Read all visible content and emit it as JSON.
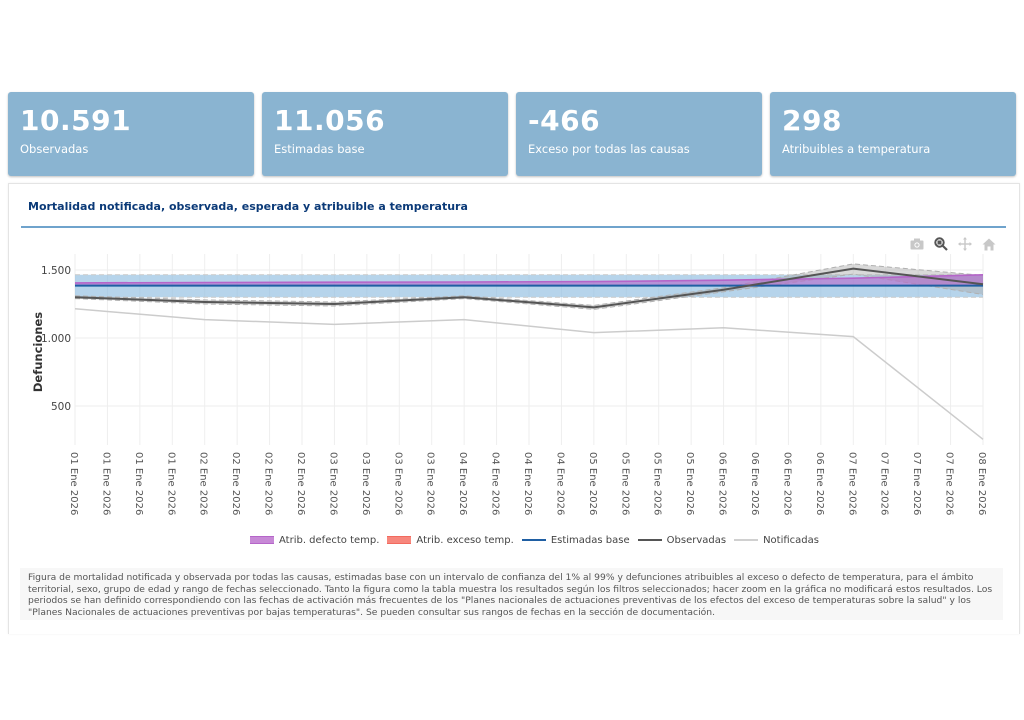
{
  "kpis": [
    {
      "value": "10.591",
      "label": "Observadas"
    },
    {
      "value": "11.056",
      "label": "Estimadas base"
    },
    {
      "value": "-466",
      "label": "Exceso por todas las causas"
    },
    {
      "value": "298",
      "label": "Atribuibles a temperatura"
    }
  ],
  "panel": {
    "title": "Mortalidad notificada, observada, esperada y atribuible a temperatura",
    "modebar": [
      "camera-icon",
      "zoom-icon",
      "pan-icon",
      "home-icon"
    ]
  },
  "colors": {
    "kpi_bg": "#8ab4d1",
    "title": "#0b3a78",
    "estimadas": "#1f5fa3",
    "ci_band": "#8fbde0",
    "defecto": "#b565c9",
    "exceso": "#f26a5e",
    "observadas": "#555555",
    "notificadas": "#cccccc"
  },
  "legend": [
    {
      "key": "defecto",
      "label": "Atrib. defecto temp.",
      "type": "area"
    },
    {
      "key": "exceso",
      "label": "Atrib. exceso temp.",
      "type": "area"
    },
    {
      "key": "estimadas",
      "label": "Estimadas base",
      "type": "line"
    },
    {
      "key": "observadas",
      "label": "Observadas",
      "type": "line"
    },
    {
      "key": "notificadas",
      "label": "Notificadas",
      "type": "line"
    }
  ],
  "caption": "Figura de mortalidad notificada y observada por todas las causas, estimadas base con un intervalo de confianza del 1% al 99% y defunciones atribuibles al exceso o defecto de temperatura, para el ámbito territorial, sexo, grupo de edad y rango de fechas seleccionado. Tanto la figura como la tabla muestra los resultados según los filtros seleccionados; hacer zoom en la gráfica no modificará estos resultados. Los periodos se han definido correspondiendo con las fechas de activación más frecuentes de los \"Planes nacionales de actuaciones preventivas de los efectos del exceso de temperaturas sobre la salud\" y los \"Planes Nacionales de actuaciones preventivas por bajas temperaturas\". Se pueden consultar sus rangos de fechas en la sección de documentación.",
  "chart_data": {
    "type": "line",
    "title": "Mortalidad notificada, observada, esperada y atribuible a temperatura",
    "xlabel": "",
    "ylabel": "Defunciones",
    "ylim": [
      200,
      1560
    ],
    "yticks": [
      500,
      1000,
      1500
    ],
    "ytick_labels": [
      "500",
      "1.000",
      "1.500"
    ],
    "grid": true,
    "legend_position": "bottom",
    "x_tick_labels": [
      "01 Ene 2026",
      "01 Ene 2026",
      "01 Ene 2026",
      "01 Ene 2026",
      "02 Ene 2026",
      "02 Ene 2026",
      "02 Ene 2026",
      "02 Ene 2026",
      "03 Ene 2026",
      "03 Ene 2026",
      "03 Ene 2026",
      "03 Ene 2026",
      "04 Ene 2026",
      "04 Ene 2026",
      "04 Ene 2026",
      "04 Ene 2026",
      "05 Ene 2026",
      "05 Ene 2026",
      "05 Ene 2026",
      "05 Ene 2026",
      "06 Ene 2026",
      "06 Ene 2026",
      "06 Ene 2026",
      "06 Ene 2026",
      "07 Ene 2026",
      "07 Ene 2026",
      "07 Ene 2026",
      "07 Ene 2026",
      "08 Ene 2026"
    ],
    "x": [
      "01 Ene 2026",
      "02 Ene 2026",
      "03 Ene 2026",
      "04 Ene 2026",
      "05 Ene 2026",
      "06 Ene 2026",
      "07 Ene 2026",
      "08 Ene 2026"
    ],
    "x_tick_index": [
      0,
      4,
      8,
      12,
      16,
      20,
      24,
      28
    ],
    "series": [
      {
        "name": "Estimadas base",
        "key": "estimadas",
        "values": [
          1385,
          1385,
          1385,
          1385,
          1385,
          1385,
          1385,
          1385
        ]
      },
      {
        "name": "Estimadas base IC 1%",
        "key": "ci_low",
        "values": [
          1300,
          1300,
          1300,
          1300,
          1300,
          1300,
          1300,
          1300
        ]
      },
      {
        "name": "Estimadas base IC 99%",
        "key": "ci_high",
        "values": [
          1465,
          1465,
          1465,
          1465,
          1465,
          1465,
          1465,
          1465
        ]
      },
      {
        "name": "Atrib. defecto temp.",
        "key": "defecto",
        "values": [
          1405,
          1408,
          1410,
          1412,
          1415,
          1425,
          1440,
          1465
        ]
      },
      {
        "name": "Atrib. exceso temp.",
        "key": "exceso",
        "values": [
          1385,
          1385,
          1385,
          1385,
          1385,
          1385,
          1385,
          1385
        ]
      },
      {
        "name": "Observadas",
        "key": "observadas",
        "values": [
          1300,
          1265,
          1250,
          1300,
          1225,
          1355,
          1510,
          1395
        ]
      },
      {
        "name": "Observadas IC bajo",
        "key": "obs_low",
        "values": [
          1290,
          1250,
          1235,
          1290,
          1210,
          1340,
          1470,
          1320
        ]
      },
      {
        "name": "Observadas IC alto",
        "key": "obs_high",
        "values": [
          1310,
          1280,
          1265,
          1310,
          1240,
          1370,
          1545,
          1460
        ]
      },
      {
        "name": "Notificadas",
        "key": "notificadas",
        "values": [
          1215,
          1135,
          1100,
          1135,
          1040,
          1075,
          1010,
          255
        ]
      }
    ]
  }
}
